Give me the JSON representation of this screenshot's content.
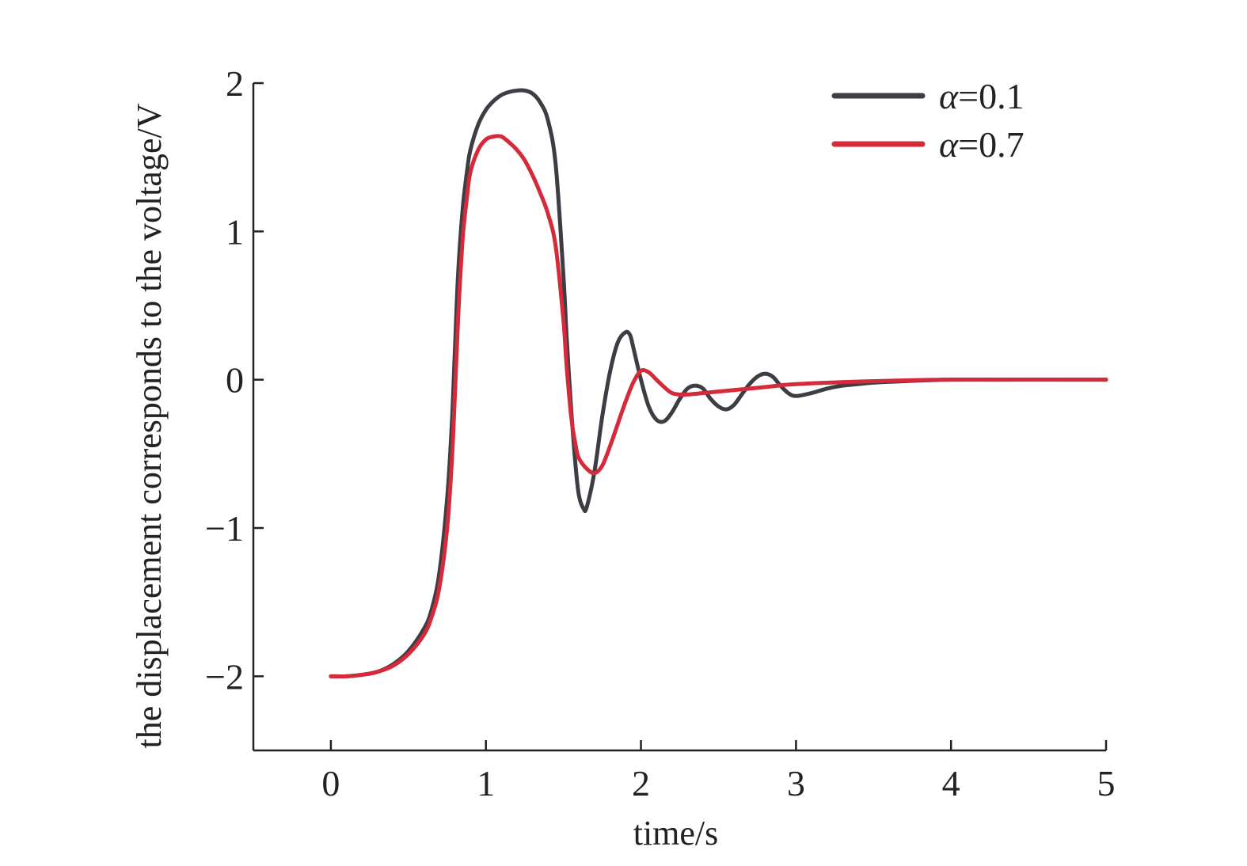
{
  "chart_data": {
    "type": "line",
    "xlabel": "time/s",
    "ylabel": "the displacement corresponds to the voltage/V",
    "xlim": [
      -0.5,
      5
    ],
    "ylim": [
      -2.5,
      2
    ],
    "xticks": [
      0,
      1,
      2,
      3,
      4,
      5
    ],
    "xtick_labels": [
      "0",
      "1",
      "2",
      "3",
      "4",
      "5"
    ],
    "yticks": [
      -2,
      -1,
      0,
      1,
      2
    ],
    "ytick_labels": [
      "−2",
      "−1",
      "0",
      "1",
      "2"
    ],
    "grid": false,
    "legend_position": "top-right",
    "series": [
      {
        "name": "α=0.1",
        "name_symbol": "α",
        "name_value": "=0.1",
        "color": "#3d3d44",
        "x": [
          0,
          0.1,
          0.2,
          0.3,
          0.4,
          0.5,
          0.6,
          0.65,
          0.7,
          0.75,
          0.78,
          0.8,
          0.82,
          0.85,
          0.88,
          0.9,
          0.95,
          1.0,
          1.05,
          1.1,
          1.15,
          1.2,
          1.25,
          1.3,
          1.35,
          1.4,
          1.45,
          1.5,
          1.52,
          1.55,
          1.58,
          1.6,
          1.63,
          1.65,
          1.7,
          1.75,
          1.8,
          1.85,
          1.9,
          1.93,
          1.95,
          2.0,
          2.05,
          2.1,
          2.15,
          2.2,
          2.25,
          2.3,
          2.35,
          2.4,
          2.45,
          2.5,
          2.55,
          2.6,
          2.65,
          2.7,
          2.75,
          2.8,
          2.85,
          2.9,
          2.95,
          3.0,
          3.1,
          3.2,
          3.3,
          3.4,
          3.5,
          3.7,
          4.0,
          4.5,
          5.0
        ],
        "y": [
          -2.0,
          -2.0,
          -1.99,
          -1.97,
          -1.92,
          -1.83,
          -1.68,
          -1.55,
          -1.3,
          -0.8,
          -0.3,
          0.2,
          0.7,
          1.15,
          1.42,
          1.55,
          1.72,
          1.82,
          1.88,
          1.92,
          1.94,
          1.95,
          1.95,
          1.93,
          1.87,
          1.75,
          1.45,
          0.7,
          0.3,
          -0.2,
          -0.6,
          -0.78,
          -0.87,
          -0.86,
          -0.62,
          -0.25,
          0.05,
          0.25,
          0.32,
          0.3,
          0.22,
          0.0,
          -0.18,
          -0.27,
          -0.28,
          -0.22,
          -0.13,
          -0.06,
          -0.04,
          -0.06,
          -0.13,
          -0.18,
          -0.2,
          -0.17,
          -0.1,
          -0.03,
          0.02,
          0.04,
          0.02,
          -0.04,
          -0.09,
          -0.11,
          -0.09,
          -0.06,
          -0.04,
          -0.03,
          -0.02,
          -0.01,
          0.0,
          0.0,
          0.0
        ]
      },
      {
        "name": "α=0.7",
        "name_symbol": "α",
        "name_value": "=0.7",
        "color": "#d42a3a",
        "x": [
          0,
          0.1,
          0.2,
          0.3,
          0.4,
          0.5,
          0.6,
          0.65,
          0.7,
          0.75,
          0.78,
          0.8,
          0.82,
          0.85,
          0.88,
          0.9,
          0.95,
          1.0,
          1.05,
          1.1,
          1.15,
          1.2,
          1.25,
          1.3,
          1.35,
          1.4,
          1.45,
          1.5,
          1.52,
          1.55,
          1.58,
          1.6,
          1.65,
          1.7,
          1.75,
          1.8,
          1.85,
          1.9,
          1.95,
          2.0,
          2.05,
          2.1,
          2.15,
          2.2,
          2.25,
          2.3,
          2.4,
          2.5,
          2.6,
          2.8,
          3.0,
          3.5,
          4.0,
          5.0
        ],
        "y": [
          -2.0,
          -2.0,
          -1.99,
          -1.97,
          -1.93,
          -1.85,
          -1.72,
          -1.6,
          -1.4,
          -1.0,
          -0.55,
          -0.1,
          0.4,
          0.95,
          1.25,
          1.4,
          1.55,
          1.62,
          1.64,
          1.64,
          1.6,
          1.55,
          1.48,
          1.38,
          1.26,
          1.12,
          0.9,
          0.4,
          0.1,
          -0.25,
          -0.45,
          -0.53,
          -0.6,
          -0.63,
          -0.58,
          -0.45,
          -0.3,
          -0.15,
          -0.02,
          0.06,
          0.05,
          0.0,
          -0.05,
          -0.09,
          -0.1,
          -0.1,
          -0.09,
          -0.08,
          -0.07,
          -0.05,
          -0.03,
          -0.01,
          0.0,
          0.0
        ]
      }
    ]
  }
}
